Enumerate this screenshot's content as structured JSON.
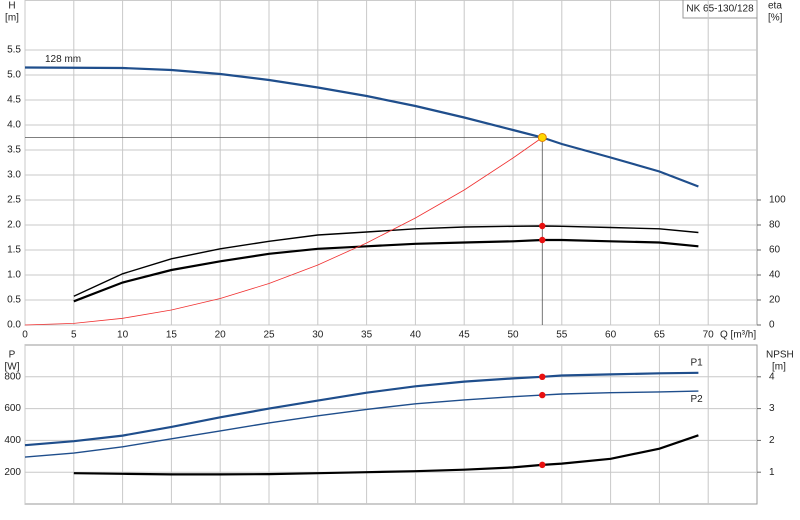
{
  "chart_data": [
    {
      "type": "line",
      "title": "NK 65-130/128",
      "ylabel": "H",
      "yunit": "[m]",
      "y2label": "eta",
      "y2unit": "[%]",
      "xlabel": "Q [m³/h]",
      "xlim": [
        0,
        75
      ],
      "xticks": [
        0,
        5,
        10,
        15,
        20,
        25,
        30,
        35,
        40,
        45,
        50,
        55,
        60,
        65,
        70
      ],
      "ylim": [
        0,
        6.5
      ],
      "yticks": [
        {
          "value": 0,
          "label": "0.0"
        },
        0.5,
        {
          "value": 1,
          "label": "1.0"
        },
        1.5,
        {
          "value": 2,
          "label": "2.0"
        },
        2.5,
        {
          "value": 3,
          "label": "3.0"
        },
        3.5,
        {
          "value": 4,
          "label": "4.0"
        },
        4.5,
        {
          "value": 5,
          "label": "5.0"
        },
        5.5
      ],
      "y2lim": [
        0,
        260
      ],
      "y2ticks": [
        0,
        20,
        40,
        60,
        80,
        100
      ],
      "grid": true,
      "duty_point": {
        "x": 53,
        "y": 3.75
      },
      "series": [
        {
          "name": "128 mm",
          "label_at": "start",
          "color": "#1f4e8c",
          "style": "bold",
          "x": [
            0,
            10,
            15,
            20,
            25,
            30,
            35,
            40,
            45,
            50,
            53,
            55,
            60,
            65,
            69
          ],
          "values": [
            5.15,
            5.14,
            5.1,
            5.02,
            4.9,
            4.75,
            4.58,
            4.38,
            4.15,
            3.9,
            3.75,
            3.62,
            3.35,
            3.07,
            2.77
          ]
        },
        {
          "color": "#000000",
          "style": "normal",
          "axis": "y2",
          "marker": "dot",
          "x": [
            5,
            10,
            15,
            20,
            25,
            30,
            35,
            40,
            45,
            50,
            53,
            55,
            60,
            65,
            69
          ],
          "values": [
            23,
            41,
            53,
            61,
            67,
            72,
            74.4,
            77,
            78.4,
            79,
            79.2,
            79,
            78,
            77,
            74
          ]
        },
        {
          "color": "#000000",
          "style": "bold",
          "axis": "y2",
          "marker": "dot",
          "x": [
            5,
            10,
            15,
            20,
            25,
            30,
            35,
            40,
            45,
            50,
            53,
            55,
            60,
            65,
            69
          ],
          "values": [
            19,
            34,
            44,
            51,
            57,
            61,
            63,
            65,
            66,
            67,
            68,
            68,
            67,
            66,
            63
          ]
        },
        {
          "color": "#f03030",
          "style": "thin",
          "x": [
            0,
            5,
            10,
            15,
            20,
            25,
            30,
            35,
            40,
            45,
            50,
            53
          ],
          "values": [
            0,
            0.033,
            0.134,
            0.3,
            0.53,
            0.83,
            1.2,
            1.64,
            2.14,
            2.7,
            3.34,
            3.75
          ]
        }
      ]
    },
    {
      "type": "line",
      "ylabel": "P",
      "yunit": "[W]",
      "y2label": "NPSH",
      "y2unit": "[m]",
      "xlim": [
        0,
        75
      ],
      "ylim": [
        0,
        1000
      ],
      "yticks": [
        200,
        400,
        600,
        800
      ],
      "y2lim": [
        0,
        5
      ],
      "y2ticks": [
        1,
        2,
        3,
        4
      ],
      "grid": true,
      "series": [
        {
          "name": "P1",
          "label_at": "end",
          "color": "#1f4e8c",
          "style": "bold",
          "marker": "dot",
          "x": [
            0,
            5,
            10,
            15,
            20,
            25,
            30,
            35,
            40,
            45,
            50,
            53,
            55,
            60,
            65,
            69
          ],
          "values": [
            370,
            395,
            430,
            485,
            545,
            600,
            650,
            700,
            740,
            770,
            790,
            800,
            808,
            815,
            822,
            825
          ]
        },
        {
          "name": "P2",
          "label_at": "end",
          "color": "#1f4e8c",
          "style": "normal",
          "marker": "dot",
          "x": [
            0,
            5,
            10,
            15,
            20,
            25,
            30,
            35,
            40,
            45,
            50,
            53,
            55,
            60,
            65,
            69
          ],
          "values": [
            295,
            320,
            360,
            410,
            460,
            510,
            555,
            595,
            630,
            655,
            675,
            685,
            692,
            700,
            705,
            710
          ]
        },
        {
          "color": "#000000",
          "style": "bold",
          "axis": "y2",
          "marker": "dot",
          "x": [
            5,
            10,
            15,
            20,
            25,
            30,
            35,
            40,
            45,
            50,
            53,
            55,
            60,
            65,
            69
          ],
          "values": [
            0.97,
            0.95,
            0.93,
            0.93,
            0.94,
            0.97,
            1.0,
            1.03,
            1.08,
            1.15,
            1.23,
            1.27,
            1.42,
            1.74,
            2.16
          ]
        }
      ]
    }
  ]
}
